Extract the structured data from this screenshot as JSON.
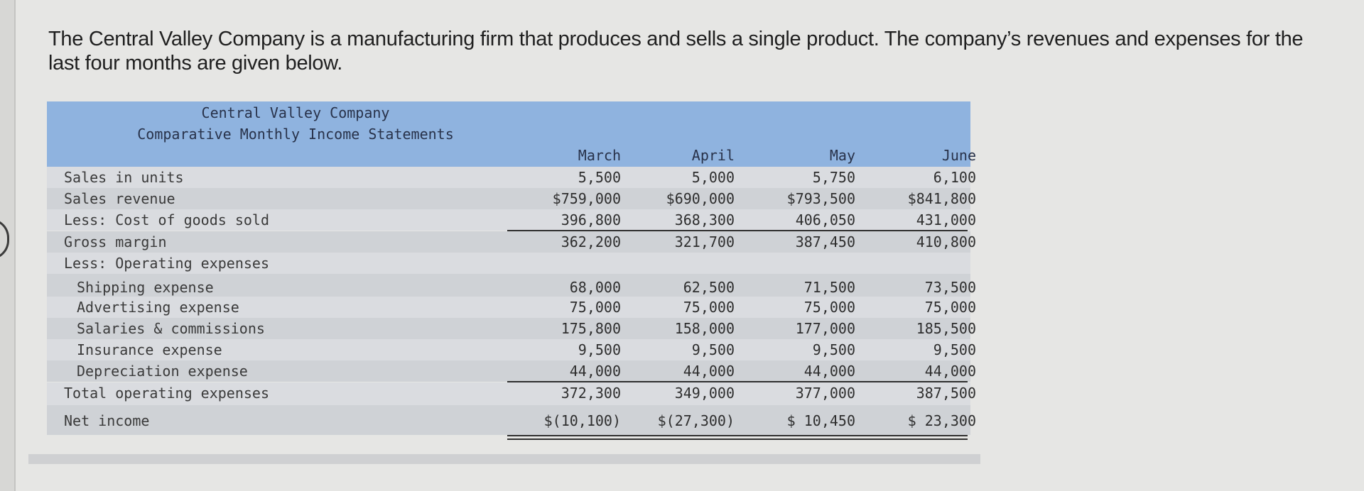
{
  "intro_text": "The Central Valley Company is a manufacturing firm that produces and sells a single product. The company’s revenues and expenses for the last four months are given below.",
  "statement": {
    "company": "Central Valley Company",
    "title": "Comparative Monthly Income Statements",
    "months": [
      "March",
      "April",
      "May",
      "June"
    ],
    "rows": [
      {
        "label": "Sales in units",
        "values": [
          "5,500",
          "5,000",
          "5,750",
          "6,100"
        ]
      },
      {
        "label": "Sales revenue",
        "values": [
          "$759,000",
          "$690,000",
          "$793,500",
          "$841,800"
        ]
      },
      {
        "label": "Less: Cost of goods sold",
        "values": [
          "396,800",
          "368,300",
          "406,050",
          "431,000"
        ]
      },
      {
        "label": "Gross margin",
        "values": [
          "362,200",
          "321,700",
          "387,450",
          "410,800"
        ]
      },
      {
        "label": "Less: Operating expenses",
        "values": [
          "",
          "",
          "",
          ""
        ]
      },
      {
        "label": "Shipping expense",
        "values": [
          "68,000",
          "62,500",
          "71,500",
          "73,500"
        ]
      },
      {
        "label": "Advertising expense",
        "values": [
          "75,000",
          "75,000",
          "75,000",
          "75,000"
        ]
      },
      {
        "label": "Salaries & commissions",
        "values": [
          "175,800",
          "158,000",
          "177,000",
          "185,500"
        ]
      },
      {
        "label": "Insurance expense",
        "values": [
          "9,500",
          "9,500",
          "9,500",
          "9,500"
        ]
      },
      {
        "label": "Depreciation expense",
        "values": [
          "44,000",
          "44,000",
          "44,000",
          "44,000"
        ]
      },
      {
        "label": "Total operating expenses",
        "values": [
          "372,300",
          "349,000",
          "377,000",
          "387,500"
        ]
      },
      {
        "label": "Net income",
        "values": [
          "$(10,100)",
          "$(27,300)",
          "$ 10,450",
          "$ 23,300"
        ]
      }
    ]
  }
}
